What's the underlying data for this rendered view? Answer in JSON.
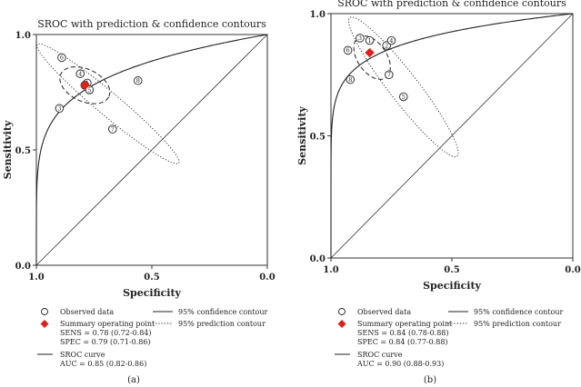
{
  "chart_data": [
    {
      "type": "scatter",
      "panel_label": "(a)",
      "title": "SROC with prediction & confidence contours",
      "xlabel": "Specificity",
      "ylabel": "Sensitivity",
      "x_reversed": true,
      "xlim": [
        1.0,
        0.0
      ],
      "ylim": [
        0.0,
        1.0
      ],
      "x_ticks": [
        "1.0",
        "0.5",
        "0.0"
      ],
      "y_ticks": [
        "0.0",
        "0.5",
        "1.0"
      ],
      "y_ticks_shown": [
        0.0,
        0.5,
        1.0
      ],
      "legend": {
        "observed": "Observed data",
        "summary": "Summary operating point",
        "summary_lines": [
          "SENS = 0.78 (0.72-0.84)",
          "SPEC = 0.79 (0.71-0.86)"
        ],
        "sroc": "SROC curve",
        "sroc_lines": [
          "AUC = 0.85 (0.82-0.86)"
        ],
        "confidence": "95% confidence contour",
        "prediction": "95% prediction contour"
      },
      "studies": [
        {
          "label": "1",
          "spec": 0.78,
          "sens": 0.79
        },
        {
          "label": "2",
          "spec": 0.79,
          "sens": 0.78
        },
        {
          "label": "3",
          "spec": 0.9,
          "sens": 0.68
        },
        {
          "label": "4",
          "spec": 0.81,
          "sens": 0.83
        },
        {
          "label": "5",
          "spec": 0.77,
          "sens": 0.76
        },
        {
          "label": "6",
          "spec": 0.89,
          "sens": 0.9
        },
        {
          "label": "7",
          "spec": 0.67,
          "sens": 0.59
        },
        {
          "label": "8",
          "spec": 0.56,
          "sens": 0.8
        }
      ],
      "summary_point": {
        "spec": 0.79,
        "sens": 0.78
      },
      "sroc_auc": 0.85,
      "confidence_contour": {
        "center_spec": 0.79,
        "center_sens": 0.78,
        "semi_major": 0.115,
        "semi_minor": 0.07,
        "angle_deg": -25
      },
      "prediction_contour": {
        "center_spec": 0.69,
        "center_sens": 0.7,
        "semi_major": 0.4,
        "semi_minor": 0.05,
        "angle_deg": -40
      }
    },
    {
      "type": "scatter",
      "panel_label": "(b)",
      "title": "SROC with prediction & confidence contours",
      "xlabel": "Specificity",
      "ylabel": "Sensitivity",
      "x_reversed": true,
      "xlim": [
        1.0,
        0.0
      ],
      "ylim": [
        0.0,
        1.0
      ],
      "x_ticks": [
        "1.0",
        "0.5",
        "0.0"
      ],
      "y_ticks": [
        "0.0",
        "0.5",
        "1.0"
      ],
      "y_ticks_shown": [
        0.0,
        0.5,
        1.0
      ],
      "legend": {
        "observed": "Observed data",
        "summary": "Summary operating point",
        "summary_lines": [
          "SENS = 0.84 (0.78-0.88)",
          "SPEC = 0.84 (0.77-0.88)"
        ],
        "sroc": "SROC curve",
        "sroc_lines": [
          "AUC = 0.90 (0.88-0.93)"
        ],
        "confidence": "95% confidence contour",
        "prediction": "95% prediction contour"
      },
      "studies": [
        {
          "label": "1",
          "spec": 0.84,
          "sens": 0.89
        },
        {
          "label": "2",
          "spec": 0.77,
          "sens": 0.87
        },
        {
          "label": "3",
          "spec": 0.88,
          "sens": 0.9
        },
        {
          "label": "4",
          "spec": 0.75,
          "sens": 0.89
        },
        {
          "label": "5",
          "spec": 0.7,
          "sens": 0.66
        },
        {
          "label": "6",
          "spec": 0.93,
          "sens": 0.85
        },
        {
          "label": "7",
          "spec": 0.76,
          "sens": 0.75
        },
        {
          "label": "8",
          "spec": 0.92,
          "sens": 0.73
        }
      ],
      "summary_point": {
        "spec": 0.84,
        "sens": 0.84
      },
      "sroc_auc": 0.9,
      "confidence_contour": {
        "center_spec": 0.83,
        "center_sens": 0.82,
        "semi_major": 0.1,
        "semi_minor": 0.06,
        "angle_deg": -55
      },
      "prediction_contour": {
        "center_spec": 0.7,
        "center_sens": 0.7,
        "semi_major": 0.36,
        "semi_minor": 0.06,
        "angle_deg": -52
      }
    }
  ],
  "colors": {
    "summary_marker": "#e0201b",
    "ink": "#222222",
    "axis": "#333333",
    "background": "#ffffff"
  }
}
